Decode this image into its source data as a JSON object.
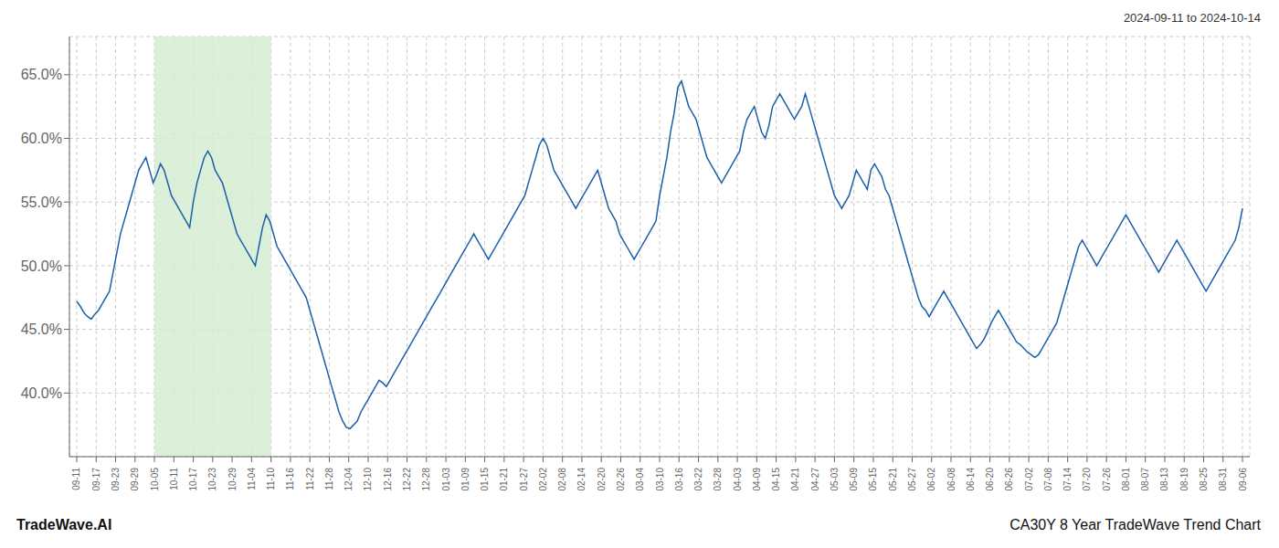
{
  "chart_data": {
    "type": "line",
    "title": "CA30Y 8 Year TradeWave Trend Chart",
    "subtitle": "2024-09-11 to 2024-10-14",
    "annotations": [
      "TradeWave.AI"
    ],
    "color": "#1a5fa8",
    "grid": true,
    "ylim": [
      35.0,
      68.0
    ],
    "yticks": [
      {
        "value": 40.0,
        "label": "40.0%"
      },
      {
        "value": 45.0,
        "label": "45.0%"
      },
      {
        "value": 50.0,
        "label": "50.0%"
      },
      {
        "value": 55.0,
        "label": "55.0%"
      },
      {
        "value": 60.0,
        "label": "60.0%"
      },
      {
        "value": 65.0,
        "label": "65.0%"
      }
    ],
    "xlim": [
      -2,
      322
    ],
    "xticks": [
      {
        "value": 0,
        "label": "09-11"
      },
      {
        "value": 5.333333333333333,
        "label": "09-17"
      },
      {
        "value": 10.666666666666666,
        "label": "09-23"
      },
      {
        "value": 16,
        "label": "09-29"
      },
      {
        "value": 21.333333333333332,
        "label": "10-05"
      },
      {
        "value": 26.666666666666668,
        "label": "10-11"
      },
      {
        "value": 32,
        "label": "10-17"
      },
      {
        "value": 37.333333333333336,
        "label": "10-23"
      },
      {
        "value": 42.666666666666664,
        "label": "10-29"
      },
      {
        "value": 48,
        "label": "11-04"
      },
      {
        "value": 53.333333333333336,
        "label": "11-10"
      },
      {
        "value": 58.666666666666664,
        "label": "11-16"
      },
      {
        "value": 64,
        "label": "11-22"
      },
      {
        "value": 69.33333333333333,
        "label": "11-28"
      },
      {
        "value": 74.66666666666667,
        "label": "12-04"
      },
      {
        "value": 80,
        "label": "12-10"
      },
      {
        "value": 85.33333333333333,
        "label": "12-16"
      },
      {
        "value": 90.66666666666667,
        "label": "12-22"
      },
      {
        "value": 96,
        "label": "12-28"
      },
      {
        "value": 101.33333333333333,
        "label": "01-03"
      },
      {
        "value": 106.66666666666667,
        "label": "01-09"
      },
      {
        "value": 112,
        "label": "01-15"
      },
      {
        "value": 117.33333333333333,
        "label": "01-21"
      },
      {
        "value": 122.66666666666667,
        "label": "01-27"
      },
      {
        "value": 128,
        "label": "02-02"
      },
      {
        "value": 133.33333333333334,
        "label": "02-08"
      },
      {
        "value": 138.66666666666666,
        "label": "02-14"
      },
      {
        "value": 144,
        "label": "02-20"
      },
      {
        "value": 149.33333333333334,
        "label": "02-26"
      },
      {
        "value": 154.66666666666666,
        "label": "03-04"
      },
      {
        "value": 160,
        "label": "03-10"
      },
      {
        "value": 165.33333333333334,
        "label": "03-16"
      },
      {
        "value": 170.66666666666666,
        "label": "03-22"
      },
      {
        "value": 176,
        "label": "03-28"
      },
      {
        "value": 181.33333333333334,
        "label": "04-03"
      },
      {
        "value": 186.66666666666666,
        "label": "04-09"
      },
      {
        "value": 192,
        "label": "04-15"
      },
      {
        "value": 197.33333333333334,
        "label": "04-21"
      },
      {
        "value": 202.66666666666666,
        "label": "04-27"
      },
      {
        "value": 208,
        "label": "05-03"
      },
      {
        "value": 213.33333333333334,
        "label": "05-09"
      },
      {
        "value": 218.66666666666666,
        "label": "05-15"
      },
      {
        "value": 224,
        "label": "05-21"
      },
      {
        "value": 229.33333333333334,
        "label": "05-27"
      },
      {
        "value": 234.66666666666666,
        "label": "06-02"
      },
      {
        "value": 240,
        "label": "06-08"
      },
      {
        "value": 245.33333333333334,
        "label": "06-14"
      },
      {
        "value": 250.66666666666666,
        "label": "06-20"
      },
      {
        "value": 256,
        "label": "06-26"
      },
      {
        "value": 261.3333333333333,
        "label": "07-02"
      },
      {
        "value": 266.6666666666667,
        "label": "07-08"
      },
      {
        "value": 272,
        "label": "07-14"
      },
      {
        "value": 277.3333333333333,
        "label": "07-20"
      },
      {
        "value": 282.6666666666667,
        "label": "07-26"
      },
      {
        "value": 288,
        "label": "08-01"
      },
      {
        "value": 293.3333333333333,
        "label": "08-07"
      },
      {
        "value": 298.6666666666667,
        "label": "08-13"
      },
      {
        "value": 304,
        "label": "08-19"
      },
      {
        "value": 309.3333333333333,
        "label": "08-25"
      },
      {
        "value": 314.6666666666667,
        "label": "08-31"
      },
      {
        "value": 320,
        "label": "09-06"
      }
    ],
    "shade": {
      "from": 21.333333333333332,
      "to": 53.333333333333336,
      "color": "#d6ecd2"
    },
    "x": [
      0,
      1,
      2,
      3,
      4,
      5,
      6,
      7,
      8,
      9,
      10,
      11,
      12,
      13,
      14,
      15,
      16,
      17,
      18,
      19,
      20,
      21,
      22,
      23,
      24,
      25,
      26,
      27,
      28,
      29,
      30,
      31,
      32,
      33,
      34,
      35,
      36,
      37,
      38,
      39,
      40,
      41,
      42,
      43,
      44,
      45,
      46,
      47,
      48,
      49,
      50,
      51,
      52,
      53,
      54,
      55,
      56,
      57,
      58,
      59,
      60,
      61,
      62,
      63,
      64,
      65,
      66,
      67,
      68,
      69,
      70,
      71,
      72,
      73,
      74,
      75,
      76,
      77,
      78,
      79,
      80,
      81,
      82,
      83,
      84,
      85,
      86,
      87,
      88,
      89,
      90,
      91,
      92,
      93,
      94,
      95,
      96,
      97,
      98,
      99,
      100,
      101,
      102,
      103,
      104,
      105,
      106,
      107,
      108,
      109,
      110,
      111,
      112,
      113,
      114,
      115,
      116,
      117,
      118,
      119,
      120,
      121,
      122,
      123,
      124,
      125,
      126,
      127,
      128,
      129,
      130,
      131,
      132,
      133,
      134,
      135,
      136,
      137,
      138,
      139,
      140,
      141,
      142,
      143,
      144,
      145,
      146,
      147,
      148,
      149,
      150,
      151,
      152,
      153,
      154,
      155,
      156,
      157,
      158,
      159,
      160,
      161,
      162,
      163,
      164,
      165,
      166,
      167,
      168,
      169,
      170,
      171,
      172,
      173,
      174,
      175,
      176,
      177,
      178,
      179,
      180,
      181,
      182,
      183,
      184,
      185,
      186,
      187,
      188,
      189,
      190,
      191,
      192,
      193,
      194,
      195,
      196,
      197,
      198,
      199,
      200,
      201,
      202,
      203,
      204,
      205,
      206,
      207,
      208,
      209,
      210,
      211,
      212,
      213,
      214,
      215,
      216,
      217,
      218,
      219,
      220,
      221,
      222,
      223,
      224,
      225,
      226,
      227,
      228,
      229,
      230,
      231,
      232,
      233,
      234,
      235,
      236,
      237,
      238,
      239,
      240,
      241,
      242,
      243,
      244,
      245,
      246,
      247,
      248,
      249,
      250,
      251,
      252,
      253,
      254,
      255,
      256,
      257,
      258,
      259,
      260,
      261,
      262,
      263,
      264,
      265,
      266,
      267,
      268,
      269,
      270,
      271,
      272,
      273,
      274,
      275,
      276,
      277,
      278,
      279,
      280,
      281,
      282,
      283,
      284,
      285,
      286,
      287,
      288,
      289,
      290,
      291,
      292,
      293,
      294,
      295,
      296,
      297,
      298,
      299,
      300,
      301,
      302,
      303,
      304,
      305,
      306,
      307,
      308,
      309,
      310,
      311,
      312,
      313,
      314,
      315,
      316,
      317,
      318,
      319,
      320
    ],
    "values": [
      47.2,
      46.8,
      46.3,
      46.0,
      45.8,
      46.2,
      46.5,
      47.0,
      47.5,
      48.0,
      49.5,
      51.0,
      52.5,
      53.5,
      54.5,
      55.5,
      56.5,
      57.5,
      58.0,
      58.5,
      57.5,
      56.5,
      57.2,
      58.0,
      57.5,
      56.5,
      55.5,
      55.0,
      54.5,
      54.0,
      53.5,
      53.0,
      55.0,
      56.5,
      57.5,
      58.5,
      59.0,
      58.5,
      57.5,
      57.0,
      56.5,
      55.5,
      54.5,
      53.5,
      52.5,
      52.0,
      51.5,
      51.0,
      50.5,
      50.0,
      51.5,
      53.0,
      54.0,
      53.5,
      52.5,
      51.5,
      51.0,
      50.5,
      50.0,
      49.5,
      49.0,
      48.5,
      48.0,
      47.5,
      46.5,
      45.5,
      44.5,
      43.5,
      42.5,
      41.5,
      40.5,
      39.5,
      38.5,
      37.8,
      37.3,
      37.2,
      37.5,
      37.8,
      38.5,
      39.0,
      39.5,
      40.0,
      40.5,
      41.0,
      40.8,
      40.5,
      41.0,
      41.5,
      42.0,
      42.5,
      43.0,
      43.5,
      44.0,
      44.5,
      45.0,
      45.5,
      46.0,
      46.5,
      47.0,
      47.5,
      48.0,
      48.5,
      49.0,
      49.5,
      50.0,
      50.5,
      51.0,
      51.5,
      52.0,
      52.5,
      52.0,
      51.5,
      51.0,
      50.5,
      51.0,
      51.5,
      52.0,
      52.5,
      53.0,
      53.5,
      54.0,
      54.5,
      55.0,
      55.5,
      56.5,
      57.5,
      58.5,
      59.5,
      60.0,
      59.5,
      58.5,
      57.5,
      57.0,
      56.5,
      56.0,
      55.5,
      55.0,
      54.5,
      55.0,
      55.5,
      56.0,
      56.5,
      57.0,
      57.5,
      56.5,
      55.5,
      54.5,
      54.0,
      53.5,
      52.5,
      52.0,
      51.5,
      51.0,
      50.5,
      51.0,
      51.5,
      52.0,
      52.5,
      53.0,
      53.5,
      55.5,
      57.0,
      58.5,
      60.5,
      62.0,
      64.0,
      64.5,
      63.5,
      62.5,
      62.0,
      61.5,
      60.5,
      59.5,
      58.5,
      58.0,
      57.5,
      57.0,
      56.5,
      57.0,
      57.5,
      58.0,
      58.5,
      59.0,
      60.5,
      61.5,
      62.0,
      62.5,
      61.5,
      60.5,
      60.0,
      61.0,
      62.5,
      63.0,
      63.5,
      63.0,
      62.5,
      62.0,
      61.5,
      62.0,
      62.5,
      63.5,
      62.5,
      61.5,
      60.5,
      59.5,
      58.5,
      57.5,
      56.5,
      55.5,
      55.0,
      54.5,
      55.0,
      55.5,
      56.5,
      57.5,
      57.0,
      56.5,
      56.0,
      57.5,
      58.0,
      57.5,
      57.0,
      56.0,
      55.5,
      54.5,
      53.5,
      52.5,
      51.5,
      50.5,
      49.5,
      48.5,
      47.5,
      46.8,
      46.5,
      46.0,
      46.5,
      47.0,
      47.5,
      48.0,
      47.5,
      47.0,
      46.5,
      46.0,
      45.5,
      45.0,
      44.5,
      44.0,
      43.5,
      43.8,
      44.2,
      44.8,
      45.5,
      46.0,
      46.5,
      46.0,
      45.5,
      45.0,
      44.5,
      44.0,
      43.8,
      43.5,
      43.2,
      43.0,
      42.8,
      43.0,
      43.5,
      44.0,
      44.5,
      45.0,
      45.5,
      46.5,
      47.5,
      48.5,
      49.5,
      50.5,
      51.5,
      52.0,
      51.5,
      51.0,
      50.5,
      50.0,
      50.5,
      51.0,
      51.5,
      52.0,
      52.5,
      53.0,
      53.5,
      54.0,
      53.5,
      53.0,
      52.5,
      52.0,
      51.5,
      51.0,
      50.5,
      50.0,
      49.5,
      50.0,
      50.5,
      51.0,
      51.5,
      52.0,
      51.5,
      51.0,
      50.5,
      50.0,
      49.5,
      49.0,
      48.5,
      48.0,
      48.5,
      49.0,
      49.5,
      50.0,
      50.5,
      51.0,
      51.5,
      52.0,
      53.0,
      54.5
    ]
  }
}
